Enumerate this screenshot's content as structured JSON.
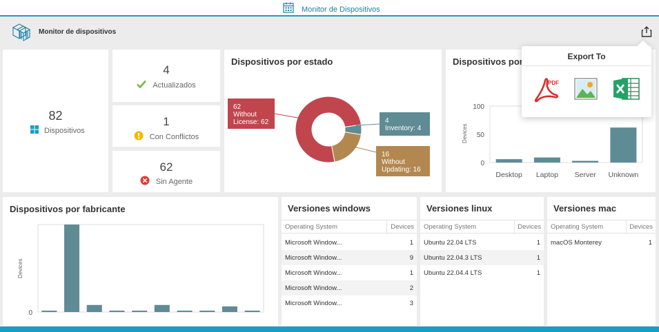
{
  "window": {
    "title": "Monitor de Dispositivos"
  },
  "header": {
    "title": "Monitor de dispositivos"
  },
  "kpis": {
    "total": {
      "value": "82",
      "label": "Dispositivos"
    },
    "updated": {
      "value": "4",
      "label": "Actualizados"
    },
    "conflicts": {
      "value": "1",
      "label": "Con Conflictos"
    },
    "no_agent": {
      "value": "62",
      "label": "Sin Agente"
    }
  },
  "status_chart": {
    "title": "Dispositivos por estado",
    "labels": {
      "without_license": [
        "62",
        "Without",
        "License: 62"
      ],
      "inventory": [
        "4",
        "Inventory: 4"
      ],
      "without_updating": [
        "16",
        "Without",
        "Updating: 16"
      ]
    }
  },
  "type_chart": {
    "title": "Dispositivos por tipo",
    "visible_title": "Dispositivos por"
  },
  "manufacturer_chart": {
    "title": "Dispositivos por fabricante"
  },
  "chart_data": [
    {
      "type": "pie",
      "title": "Dispositivos por estado",
      "categories": [
        "Without License",
        "Inventory",
        "Without Updating"
      ],
      "values": [
        62,
        4,
        16
      ],
      "colors": [
        "#c1454d",
        "#5f8b95",
        "#b38850"
      ]
    },
    {
      "type": "bar",
      "title": "Dispositivos por",
      "ylabel": "Devices",
      "categories": [
        "Desktop",
        "Laptop",
        "Server",
        "Unknown"
      ],
      "values": [
        6,
        9,
        3,
        62
      ],
      "ylim": [
        0,
        100
      ],
      "yticks": [
        "100",
        "50",
        "0"
      ],
      "color": "#5f8b95"
    },
    {
      "type": "bar",
      "title": "Dispositivos por fabricante",
      "ylabel": "Devices",
      "categories": [
        "",
        "",
        "",
        "",
        "",
        "",
        "",
        "",
        "",
        ""
      ],
      "values": [
        1,
        62,
        5,
        1,
        1,
        5,
        1,
        1,
        4,
        1
      ],
      "ylim": [
        0,
        62
      ],
      "yticks": [
        "0"
      ],
      "color": "#5f8b95"
    }
  ],
  "tables": {
    "windows": {
      "title": "Versiones windows",
      "col1": "Operating System",
      "col2": "Devices",
      "rows": [
        {
          "os": "Microsoft Window...",
          "devices": "1"
        },
        {
          "os": "Microsoft Window...",
          "devices": "9"
        },
        {
          "os": "Microsoft Window...",
          "devices": "1"
        },
        {
          "os": "Microsoft Window...",
          "devices": "2"
        },
        {
          "os": "Microsoft Window...",
          "devices": "3"
        }
      ]
    },
    "linux": {
      "title": "Versiones linux",
      "col1": "Operating System",
      "col2": "Devices",
      "rows": [
        {
          "os": "Ubuntu 22.04 LTS",
          "devices": "1"
        },
        {
          "os": "Ubuntu 22.04.3 LTS",
          "devices": "1"
        },
        {
          "os": "Ubuntu 22.04.4 LTS",
          "devices": "1"
        }
      ]
    },
    "mac": {
      "title": "Versiones mac",
      "col1": "Operating System",
      "col2": "Devices",
      "rows": [
        {
          "os": "macOS Monterey",
          "devices": "1"
        }
      ]
    }
  },
  "export_panel": {
    "title": "Export To",
    "pdf_text": "PDF",
    "icons": [
      "pdf-icon",
      "image-icon",
      "excel-icon"
    ]
  },
  "colors": {
    "accent": "#1a9cc7",
    "bar": "#5f8b95",
    "danger": "#c1454d",
    "warn": "#b38850",
    "ok": "#7cb342",
    "conflict": "#f5b800",
    "error": "#e53935",
    "windows": "#1a9cc7"
  }
}
